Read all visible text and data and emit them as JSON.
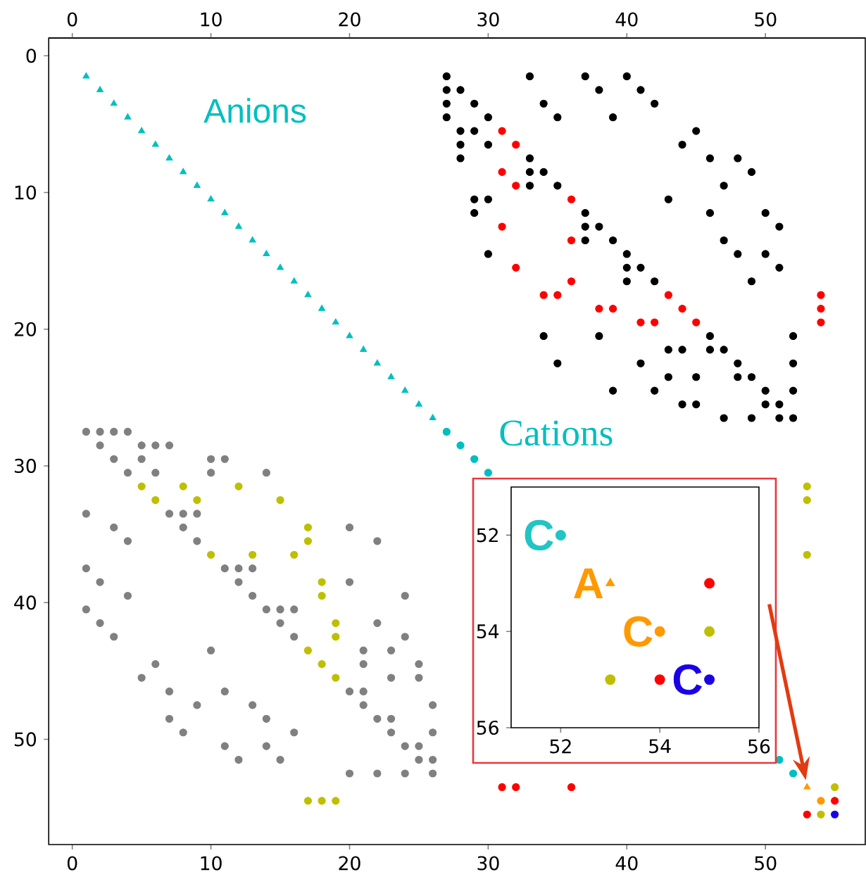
{
  "chart_data": [
    {
      "type": "scatter",
      "xlim": [
        -1.7,
        57.2
      ],
      "ylim": [
        57.7,
        -1.3
      ],
      "xticks": [
        0,
        10,
        20,
        30,
        40,
        50
      ],
      "yticks": [
        0,
        10,
        20,
        30,
        40,
        50
      ],
      "x2lim": [
        -1.7,
        57.2
      ],
      "x2ticks": [
        0,
        10,
        20,
        30,
        40,
        50
      ],
      "series": [
        {
          "name": "Anions",
          "color": "#00bfbf",
          "marker": "triangle",
          "x": [
            1,
            2,
            3,
            4,
            5,
            6,
            7,
            8,
            9,
            10,
            11,
            12,
            13,
            14,
            15,
            16,
            17,
            18,
            19,
            20,
            21,
            22,
            23,
            24,
            25,
            26
          ],
          "values": [
            1.5,
            2.5,
            3.5,
            4.5,
            5.5,
            6.5,
            7.5,
            8.5,
            9.5,
            10.5,
            11.5,
            12.5,
            13.5,
            14.5,
            15.5,
            16.5,
            17.5,
            18.5,
            19.5,
            20.5,
            21.5,
            22.5,
            23.5,
            24.5,
            25.5,
            26.5
          ]
        },
        {
          "name": "Cations",
          "color": "#00bfbf",
          "marker": "circle",
          "x": [
            27,
            28,
            29,
            30,
            51,
            52
          ],
          "values": [
            27.5,
            28.5,
            29.5,
            30.5,
            51.5,
            52.5
          ]
        },
        {
          "color": "#000000",
          "marker": "circle",
          "x": [
            27,
            33,
            37,
            40,
            27,
            28,
            38,
            41,
            27,
            29,
            34,
            42,
            27,
            30,
            35,
            39,
            28,
            29,
            45,
            28,
            30,
            44,
            28,
            33,
            46,
            48,
            33,
            34,
            49,
            33,
            35,
            47,
            29,
            30,
            43,
            29,
            37,
            46,
            50,
            37,
            38,
            51,
            37,
            39,
            47,
            30,
            40,
            48,
            50,
            40,
            41,
            51,
            40,
            42,
            49,
            34,
            38,
            46,
            52,
            43,
            44,
            46,
            47,
            35,
            41,
            48,
            52,
            43,
            45,
            48,
            49,
            39,
            42,
            50,
            52,
            44,
            45,
            50,
            51,
            47,
            49,
            51,
            52
          ],
          "values": [
            1.5,
            1.5,
            1.5,
            1.5,
            2.5,
            2.5,
            2.5,
            2.5,
            3.5,
            3.5,
            3.5,
            3.5,
            4.5,
            4.5,
            4.5,
            4.5,
            5.5,
            5.5,
            5.5,
            6.5,
            6.5,
            6.5,
            7.5,
            7.5,
            7.5,
            7.5,
            8.5,
            8.5,
            8.5,
            9.5,
            9.5,
            9.5,
            10.5,
            10.5,
            10.5,
            11.5,
            11.5,
            11.5,
            11.5,
            12.5,
            12.5,
            12.5,
            13.5,
            13.5,
            13.5,
            14.5,
            14.5,
            14.5,
            14.5,
            15.5,
            15.5,
            15.5,
            16.5,
            16.5,
            16.5,
            20.5,
            20.5,
            20.5,
            20.5,
            21.5,
            21.5,
            21.5,
            21.5,
            22.5,
            22.5,
            22.5,
            22.5,
            23.5,
            23.5,
            23.5,
            23.5,
            24.5,
            24.5,
            24.5,
            24.5,
            25.5,
            25.5,
            25.5,
            25.5,
            26.5,
            26.5,
            26.5,
            26.5
          ]
        },
        {
          "color": "#ff0000",
          "marker": "circle",
          "x": [
            31,
            32,
            31,
            32,
            36,
            31,
            36,
            32,
            36,
            34,
            35,
            43,
            54,
            38,
            39,
            44,
            54,
            41,
            42,
            45,
            54,
            31,
            32,
            36,
            55,
            53
          ],
          "values": [
            5.5,
            6.5,
            8.5,
            9.5,
            10.5,
            12.5,
            13.5,
            15.5,
            16.5,
            17.5,
            17.5,
            17.5,
            17.5,
            18.5,
            18.5,
            18.5,
            18.5,
            19.5,
            19.5,
            19.5,
            19.5,
            53.5,
            53.5,
            53.5,
            54.5,
            55.5
          ]
        },
        {
          "color": "#808080",
          "marker": "circle",
          "x": [
            1,
            2,
            3,
            4,
            2,
            5,
            6,
            7,
            3,
            5,
            10,
            11,
            4,
            6,
            10,
            14,
            1,
            7,
            8,
            9,
            3,
            8,
            20,
            4,
            9,
            22,
            1,
            11,
            12,
            13,
            2,
            12,
            20,
            4,
            13,
            24,
            1,
            14,
            15,
            16,
            2,
            15,
            22,
            3,
            16,
            24,
            10,
            21,
            23,
            6,
            21,
            25,
            5,
            23,
            25,
            7,
            11,
            20,
            21,
            9,
            13,
            21,
            26,
            7,
            14,
            22,
            23,
            8,
            16,
            23,
            26,
            11,
            14,
            24,
            25,
            12,
            15,
            25,
            26,
            20,
            22,
            24,
            26
          ],
          "values": [
            27.5,
            27.5,
            27.5,
            27.5,
            28.5,
            28.5,
            28.5,
            28.5,
            29.5,
            29.5,
            29.5,
            29.5,
            30.5,
            30.5,
            30.5,
            30.5,
            33.5,
            33.5,
            33.5,
            33.5,
            34.5,
            34.5,
            34.5,
            35.5,
            35.5,
            35.5,
            37.5,
            37.5,
            37.5,
            37.5,
            38.5,
            38.5,
            38.5,
            39.5,
            39.5,
            39.5,
            40.5,
            40.5,
            40.5,
            40.5,
            41.5,
            41.5,
            41.5,
            42.5,
            42.5,
            42.5,
            43.5,
            43.5,
            43.5,
            44.5,
            44.5,
            44.5,
            45.5,
            45.5,
            45.5,
            46.5,
            46.5,
            46.5,
            46.5,
            47.5,
            47.5,
            47.5,
            47.5,
            48.5,
            48.5,
            48.5,
            48.5,
            49.5,
            49.5,
            49.5,
            49.5,
            50.5,
            50.5,
            50.5,
            50.5,
            51.5,
            51.5,
            51.5,
            51.5,
            52.5,
            52.5,
            52.5,
            52.5
          ]
        },
        {
          "color": "#bfbf00",
          "marker": "circle",
          "x": [
            5,
            8,
            12,
            6,
            9,
            15,
            53,
            53,
            17,
            17,
            10,
            13,
            16,
            53,
            18,
            18,
            19,
            19,
            17,
            18,
            19,
            55,
            17,
            18,
            19,
            54
          ],
          "values": [
            31.5,
            31.5,
            31.5,
            32.5,
            32.5,
            32.5,
            31.5,
            32.5,
            34.5,
            35.5,
            36.5,
            36.5,
            36.5,
            36.5,
            38.5,
            39.5,
            41.5,
            42.5,
            43.5,
            44.5,
            45.5,
            53.5,
            54.5,
            54.5,
            54.5,
            55.5
          ]
        },
        {
          "color": "#ff9900",
          "marker": "triangle",
          "x": [
            53
          ],
          "values": [
            53.5
          ]
        },
        {
          "color": "#ff9900",
          "marker": "circle",
          "x": [
            54
          ],
          "values": [
            54.5
          ]
        },
        {
          "color": "#1a00e6",
          "marker": "circle",
          "x": [
            55
          ],
          "values": [
            55.5
          ]
        }
      ]
    },
    {
      "type": "scatter",
      "xlim": [
        51,
        56
      ],
      "ylim": [
        56,
        51
      ],
      "xticks": [
        52,
        54,
        56
      ],
      "yticks": [
        52,
        54,
        56
      ],
      "series": [
        {
          "name": "C",
          "color": "#22c4c4",
          "marker": "circle",
          "x": [
            52
          ],
          "values": [
            52
          ]
        },
        {
          "name": "A",
          "color": "#ff9900",
          "marker": "triangle",
          "x": [
            53
          ],
          "values": [
            53
          ]
        },
        {
          "name": "C",
          "color": "#ff9900",
          "marker": "circle",
          "x": [
            54
          ],
          "values": [
            54
          ]
        },
        {
          "name": "C",
          "color": "#1a00e6",
          "marker": "circle",
          "x": [
            55
          ],
          "values": [
            55
          ]
        },
        {
          "color": "#ff0000",
          "marker": "circle",
          "x": [
            55,
            54
          ],
          "values": [
            53,
            55
          ]
        },
        {
          "color": "#bfbf00",
          "marker": "circle",
          "x": [
            55,
            53
          ],
          "values": [
            54,
            55
          ]
        }
      ]
    }
  ]
}
